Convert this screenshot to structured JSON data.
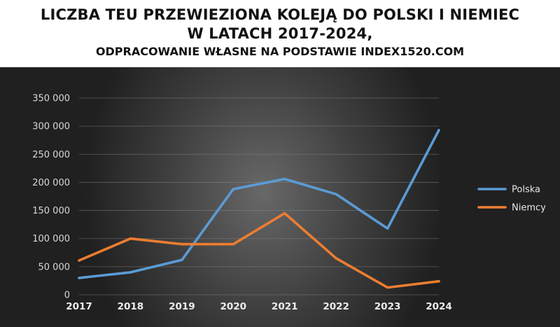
{
  "header": {
    "title": "LICZBA TEU PRZEWIEZIONA KOLEJĄ DO POLSKI I NIEMIEC\nW LATACH 2017-2024,",
    "subtitle": "ODPRACOWANIE WŁASNE NA PODSTAWIE INDEX1520.COM"
  },
  "chart_data": {
    "type": "line",
    "title": "LICZBA TEU PRZEWIEZIONA KOLEJĄ DO POLSKI I NIEMIEC W LATACH 2017-2024,",
    "subtitle": "ODPRACOWANIE WŁASNE NA PODSTAWIE INDEX1520.COM",
    "xlabel": "",
    "ylabel": "",
    "categories": [
      "2017",
      "2018",
      "2019",
      "2020",
      "2021",
      "2022",
      "2023",
      "2024"
    ],
    "y_ticks": [
      "0",
      "50 000",
      "100 000",
      "150 000",
      "200 000",
      "250 000",
      "300 000",
      "350 000"
    ],
    "ylim": [
      0,
      350000
    ],
    "grid": true,
    "legend_position": "right",
    "series": [
      {
        "name": "Polska",
        "color": "#5b9bd5",
        "values": [
          30000,
          40000,
          62000,
          188000,
          206000,
          179000,
          118000,
          293000
        ]
      },
      {
        "name": "Niemcy",
        "color": "#ed7d31",
        "values": [
          61000,
          100000,
          90000,
          90000,
          145000,
          65000,
          13000,
          24000
        ]
      }
    ]
  }
}
